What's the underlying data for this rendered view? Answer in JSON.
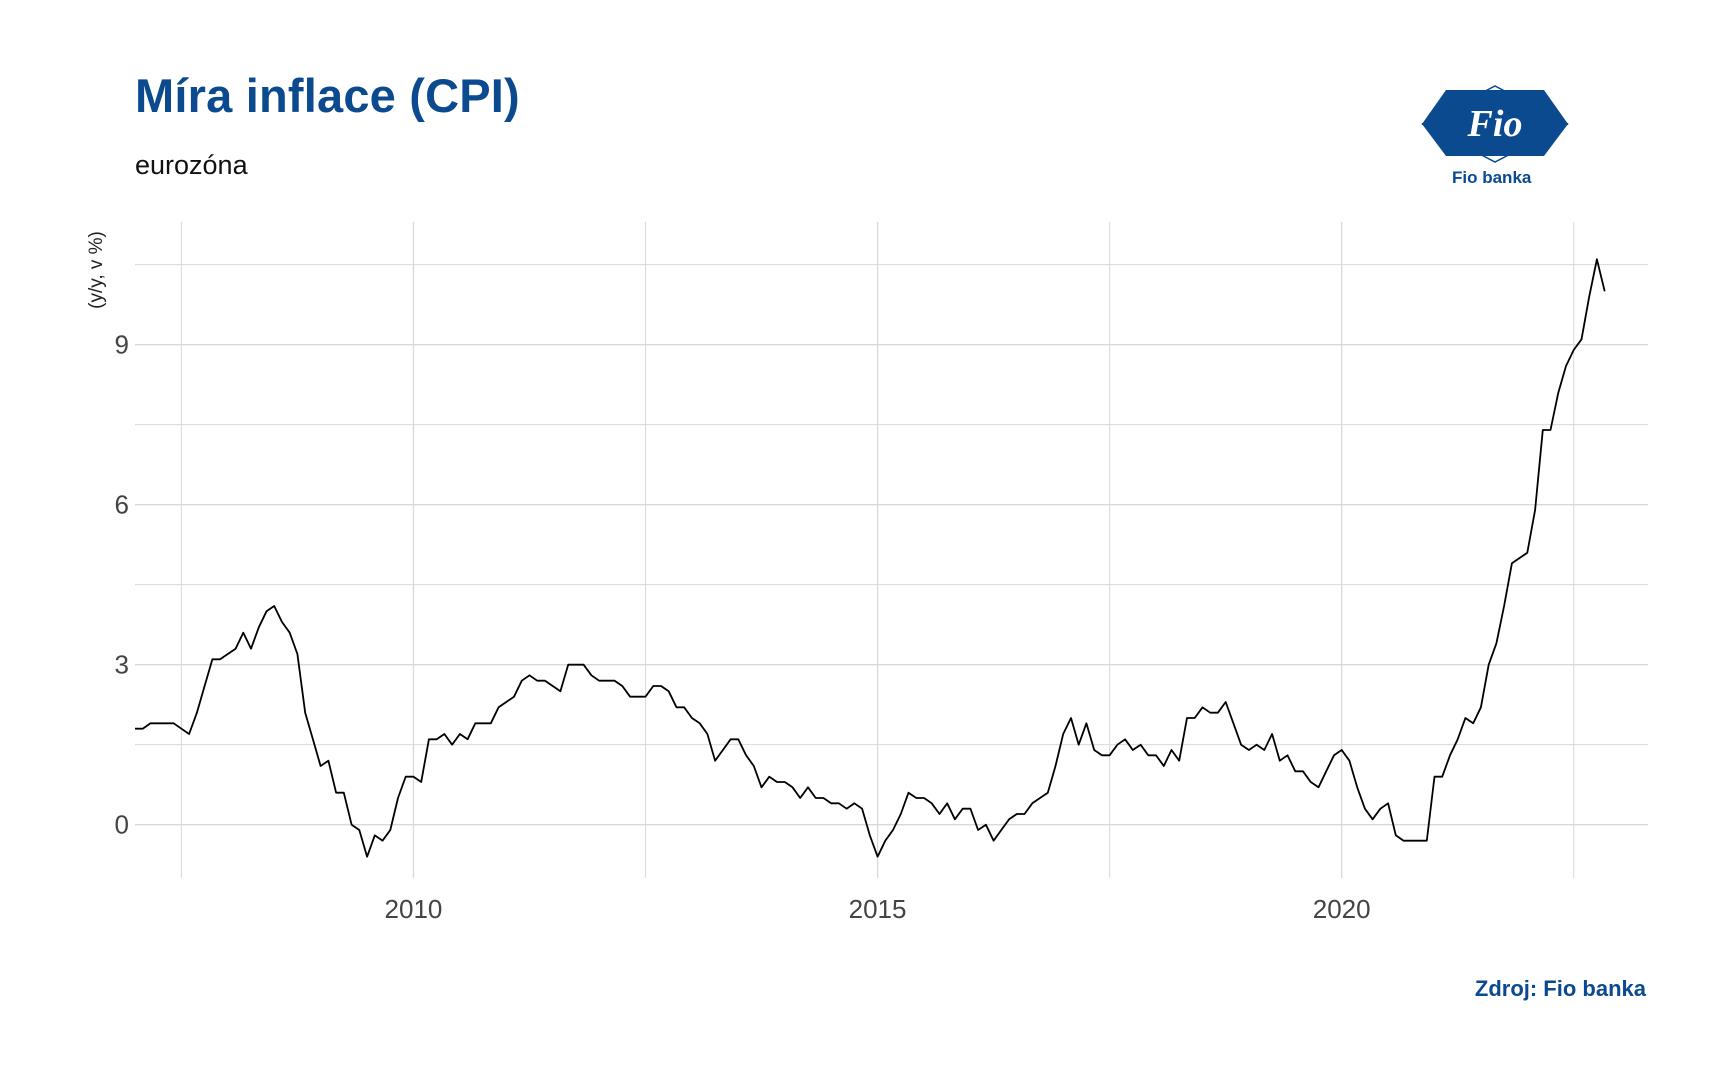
{
  "header": {
    "title": "Míra inflace (CPI)",
    "subtitle": "eurozóna"
  },
  "logo": {
    "text": "Fio banka",
    "mark": "Fio"
  },
  "footer": {
    "source": "Zdroj: Fio banka"
  },
  "colors": {
    "brand": "#0b4a8f",
    "line": "#000000",
    "grid": "#d9d9d9"
  },
  "chart_data": {
    "type": "line",
    "ylabel": "(y/y, v %)",
    "xlabel": "",
    "xlim": [
      2007.0,
      2023.3
    ],
    "ylim": [
      -1.0,
      11.3
    ],
    "xticks": [
      2010,
      2015,
      2020
    ],
    "xtick_labels": [
      "2010",
      "2015",
      "2020"
    ],
    "yticks": [
      0,
      3,
      6,
      9
    ],
    "ytick_labels": [
      "0",
      "3",
      "6",
      "9"
    ],
    "grid": true,
    "legend": "none",
    "series": [
      {
        "x": [
          "2007-01",
          "2007-02",
          "2007-03",
          "2007-04",
          "2007-05",
          "2007-06",
          "2007-07",
          "2007-08",
          "2007-09",
          "2007-10",
          "2007-11",
          "2007-12",
          "2008-01",
          "2008-02",
          "2008-03",
          "2008-04",
          "2008-05",
          "2008-06",
          "2008-07",
          "2008-08",
          "2008-09",
          "2008-10",
          "2008-11",
          "2008-12",
          "2009-01",
          "2009-02",
          "2009-03",
          "2009-04",
          "2009-05",
          "2009-06",
          "2009-07",
          "2009-08",
          "2009-09",
          "2009-10",
          "2009-11",
          "2009-12",
          "2010-01",
          "2010-02",
          "2010-03",
          "2010-04",
          "2010-05",
          "2010-06",
          "2010-07",
          "2010-08",
          "2010-09",
          "2010-10",
          "2010-11",
          "2010-12",
          "2011-01",
          "2011-02",
          "2011-03",
          "2011-04",
          "2011-05",
          "2011-06",
          "2011-07",
          "2011-08",
          "2011-09",
          "2011-10",
          "2011-11",
          "2011-12",
          "2012-01",
          "2012-02",
          "2012-03",
          "2012-04",
          "2012-05",
          "2012-06",
          "2012-07",
          "2012-08",
          "2012-09",
          "2012-10",
          "2012-11",
          "2012-12",
          "2013-01",
          "2013-02",
          "2013-03",
          "2013-04",
          "2013-05",
          "2013-06",
          "2013-07",
          "2013-08",
          "2013-09",
          "2013-10",
          "2013-11",
          "2013-12",
          "2014-01",
          "2014-02",
          "2014-03",
          "2014-04",
          "2014-05",
          "2014-06",
          "2014-07",
          "2014-08",
          "2014-09",
          "2014-10",
          "2014-11",
          "2014-12",
          "2015-01",
          "2015-02",
          "2015-03",
          "2015-04",
          "2015-05",
          "2015-06",
          "2015-07",
          "2015-08",
          "2015-09",
          "2015-10",
          "2015-11",
          "2015-12",
          "2016-01",
          "2016-02",
          "2016-03",
          "2016-04",
          "2016-05",
          "2016-06",
          "2016-07",
          "2016-08",
          "2016-09",
          "2016-10",
          "2016-11",
          "2016-12",
          "2017-01",
          "2017-02",
          "2017-03",
          "2017-04",
          "2017-05",
          "2017-06",
          "2017-07",
          "2017-08",
          "2017-09",
          "2017-10",
          "2017-11",
          "2017-12",
          "2018-01",
          "2018-02",
          "2018-03",
          "2018-04",
          "2018-05",
          "2018-06",
          "2018-07",
          "2018-08",
          "2018-09",
          "2018-10",
          "2018-11",
          "2018-12",
          "2019-01",
          "2019-02",
          "2019-03",
          "2019-04",
          "2019-05",
          "2019-06",
          "2019-07",
          "2019-08",
          "2019-09",
          "2019-10",
          "2019-11",
          "2019-12",
          "2020-01",
          "2020-02",
          "2020-03",
          "2020-04",
          "2020-05",
          "2020-06",
          "2020-07",
          "2020-08",
          "2020-09",
          "2020-10",
          "2020-11",
          "2020-12",
          "2021-01",
          "2021-02",
          "2021-03",
          "2021-04",
          "2021-05",
          "2021-06",
          "2021-07",
          "2021-08",
          "2021-09",
          "2021-10",
          "2021-11",
          "2021-12",
          "2022-01",
          "2022-02",
          "2022-03",
          "2022-04",
          "2022-05",
          "2022-06",
          "2022-07",
          "2022-08",
          "2022-09",
          "2022-10",
          "2022-11"
        ],
        "values": [
          1.8,
          1.8,
          1.9,
          1.9,
          1.9,
          1.9,
          1.8,
          1.7,
          2.1,
          2.6,
          3.1,
          3.1,
          3.2,
          3.3,
          3.6,
          3.3,
          3.7,
          4.0,
          4.1,
          3.8,
          3.6,
          3.2,
          2.1,
          1.6,
          1.1,
          1.2,
          0.6,
          0.6,
          0.0,
          -0.1,
          -0.6,
          -0.2,
          -0.3,
          -0.1,
          0.5,
          0.9,
          0.9,
          0.8,
          1.6,
          1.6,
          1.7,
          1.5,
          1.7,
          1.6,
          1.9,
          1.9,
          1.9,
          2.2,
          2.3,
          2.4,
          2.7,
          2.8,
          2.7,
          2.7,
          2.6,
          2.5,
          3.0,
          3.0,
          3.0,
          2.8,
          2.7,
          2.7,
          2.7,
          2.6,
          2.4,
          2.4,
          2.4,
          2.6,
          2.6,
          2.5,
          2.2,
          2.2,
          2.0,
          1.9,
          1.7,
          1.2,
          1.4,
          1.6,
          1.6,
          1.3,
          1.1,
          0.7,
          0.9,
          0.8,
          0.8,
          0.7,
          0.5,
          0.7,
          0.5,
          0.5,
          0.4,
          0.4,
          0.3,
          0.4,
          0.3,
          -0.2,
          -0.6,
          -0.3,
          -0.1,
          0.2,
          0.6,
          0.5,
          0.5,
          0.4,
          0.2,
          0.4,
          0.1,
          0.3,
          0.3,
          -0.1,
          0.0,
          -0.3,
          -0.1,
          0.1,
          0.2,
          0.2,
          0.4,
          0.5,
          0.6,
          1.1,
          1.7,
          2.0,
          1.5,
          1.9,
          1.4,
          1.3,
          1.3,
          1.5,
          1.6,
          1.4,
          1.5,
          1.3,
          1.3,
          1.1,
          1.4,
          1.2,
          2.0,
          2.0,
          2.2,
          2.1,
          2.1,
          2.3,
          1.9,
          1.5,
          1.4,
          1.5,
          1.4,
          1.7,
          1.2,
          1.3,
          1.0,
          1.0,
          0.8,
          0.7,
          1.0,
          1.3,
          1.4,
          1.2,
          0.7,
          0.3,
          0.1,
          0.3,
          0.4,
          -0.2,
          -0.3,
          -0.3,
          -0.3,
          -0.3,
          0.9,
          0.9,
          1.3,
          1.6,
          2.0,
          1.9,
          2.2,
          3.0,
          3.4,
          4.1,
          4.9,
          5.0,
          5.1,
          5.9,
          7.4,
          7.4,
          8.1,
          8.6,
          8.9,
          9.1,
          9.9,
          10.6,
          10.0
        ]
      }
    ]
  }
}
